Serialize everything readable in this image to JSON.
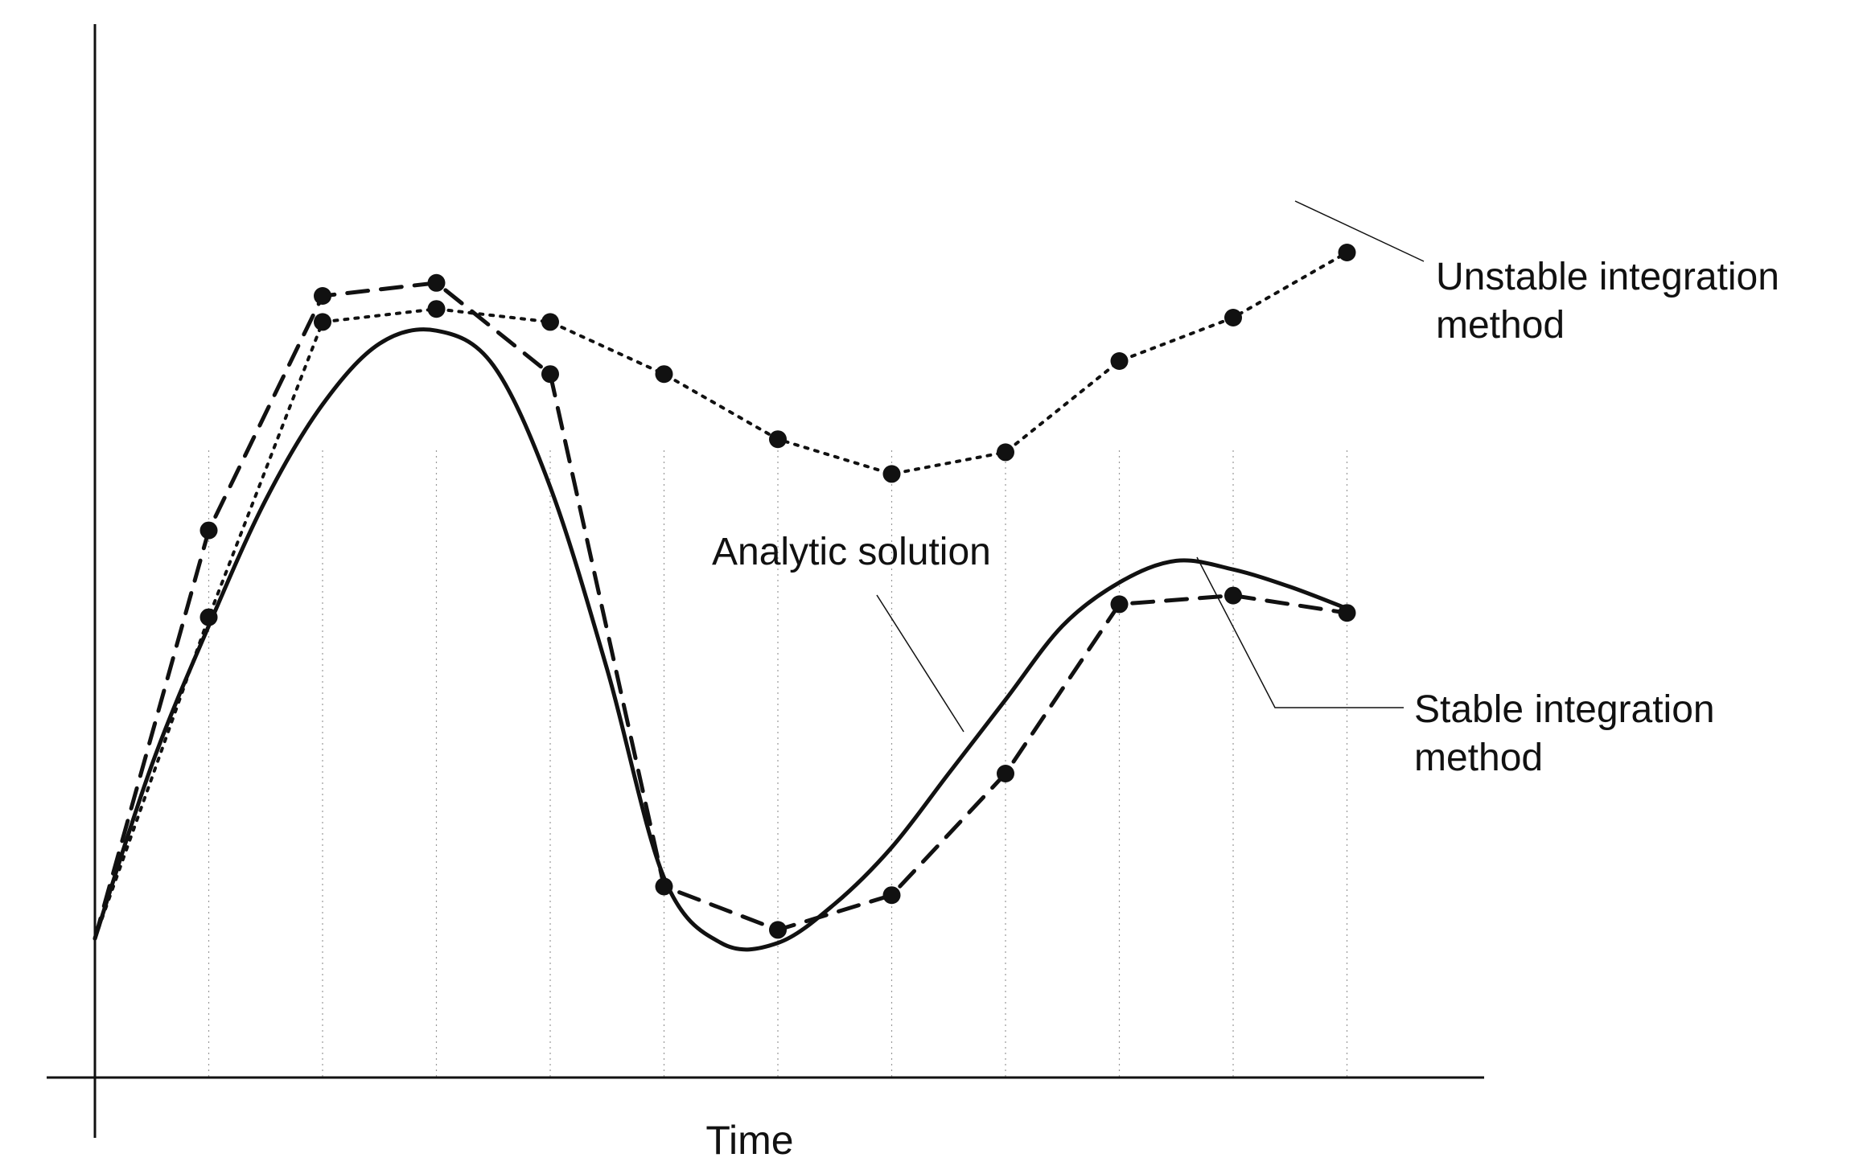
{
  "chart_data": {
    "type": "line",
    "xlabel": "Time",
    "ylabel": "",
    "title": "",
    "xlim": [
      0,
      11.4
    ],
    "ylim": [
      0,
      10
    ],
    "grid": "vertical dotted lines at each time step",
    "x": [
      0,
      1,
      2,
      3,
      4,
      5,
      6,
      7,
      8,
      9,
      10,
      11
    ],
    "series": [
      {
        "name": "Analytic solution",
        "style": "solid",
        "markers": false,
        "x": [
          0,
          0.5,
          1,
          1.5,
          2,
          2.5,
          3,
          3.5,
          4,
          4.5,
          5,
          5.5,
          6,
          6.5,
          7,
          7.5,
          8,
          8.5,
          9,
          9.5,
          10,
          10.5,
          11
        ],
        "y": [
          1.6,
          3.6,
          5.2,
          6.65,
          7.75,
          8.45,
          8.6,
          8.2,
          6.8,
          4.7,
          2.3,
          1.55,
          1.55,
          2.0,
          2.65,
          3.5,
          4.35,
          5.2,
          5.7,
          5.95,
          5.85,
          5.65,
          5.4
        ]
      },
      {
        "name": "Stable integration method",
        "style": "dashed",
        "markers": true,
        "x": [
          0,
          1,
          2,
          3,
          4,
          5,
          6,
          7,
          8,
          9,
          10,
          11
        ],
        "y": [
          1.6,
          6.3,
          9.0,
          9.15,
          8.1,
          2.2,
          1.7,
          2.1,
          3.5,
          5.45,
          5.55,
          5.35
        ]
      },
      {
        "name": "Unstable integration method",
        "style": "dotted",
        "markers": true,
        "x": [
          0,
          1,
          2,
          3,
          4,
          5,
          6,
          7,
          8,
          9,
          10,
          11
        ],
        "y": [
          1.6,
          5.3,
          8.7,
          8.85,
          8.7,
          8.1,
          7.35,
          6.95,
          7.2,
          8.25,
          8.75,
          9.5
        ]
      }
    ],
    "annotations": [
      {
        "text_lines": [
          "Unstable integration",
          "method"
        ],
        "points_to": "Unstable integration method"
      },
      {
        "text_lines": [
          "Analytic solution"
        ],
        "points_to": "Analytic solution"
      },
      {
        "text_lines": [
          "Stable integration",
          "method"
        ],
        "points_to": "Stable integration method"
      }
    ]
  },
  "annotations_text": {
    "unstable_line1": "Unstable integration",
    "unstable_line2": "method",
    "analytic": "Analytic solution",
    "stable_line1": "Stable integration",
    "stable_line2": "method"
  },
  "colors": {
    "ink": "#111111",
    "grid": "#9a9a9a",
    "background": "#ffffff"
  }
}
